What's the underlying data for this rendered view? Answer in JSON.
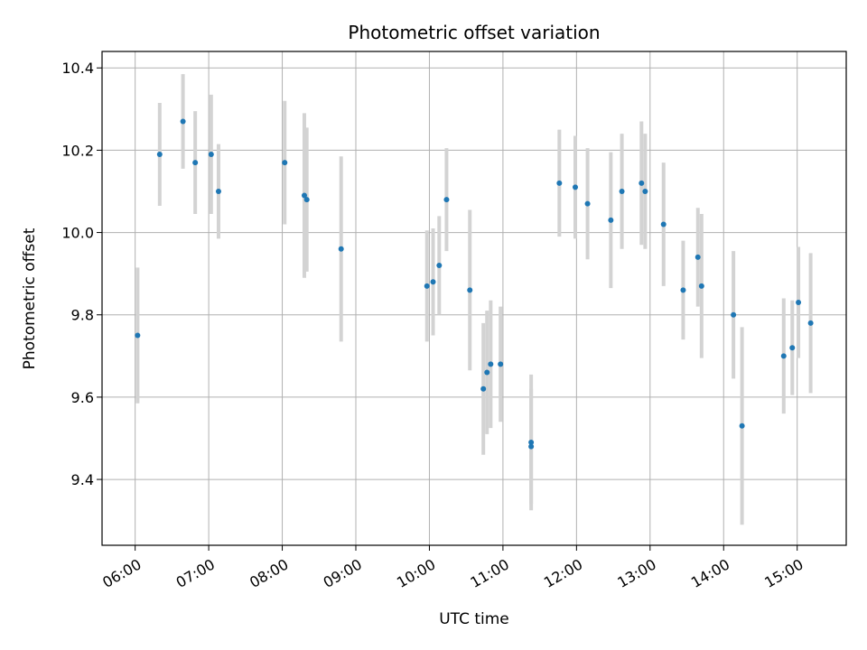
{
  "chart_data": {
    "type": "scatter",
    "title": "Photometric offset variation",
    "xlabel": "UTC time",
    "ylabel": "Photometric offset",
    "x_axis_type": "time",
    "x_ticks": [
      "06:00",
      "07:00",
      "08:00",
      "09:00",
      "10:00",
      "11:00",
      "12:00",
      "13:00",
      "14:00",
      "15:00"
    ],
    "xlim": [
      "05:33",
      "15:40"
    ],
    "y_ticks": [
      "9.4",
      "9.6",
      "9.8",
      "10.0",
      "10.2",
      "10.4"
    ],
    "ylim": [
      9.24,
      10.44
    ],
    "grid": true,
    "colors": {
      "points": "#1f77b4",
      "error_bars": "#d3d3d3",
      "grid": "#b0b0b0"
    },
    "points": [
      {
        "x": "06:02",
        "y": 9.75,
        "err": 0.165
      },
      {
        "x": "06:20",
        "y": 10.19,
        "err": 0.125
      },
      {
        "x": "06:39",
        "y": 10.27,
        "err": 0.115
      },
      {
        "x": "06:49",
        "y": 10.17,
        "err": 0.125
      },
      {
        "x": "07:02",
        "y": 10.19,
        "err": 0.145
      },
      {
        "x": "07:08",
        "y": 10.1,
        "err": 0.115
      },
      {
        "x": "08:02",
        "y": 10.17,
        "err": 0.15
      },
      {
        "x": "08:18",
        "y": 10.09,
        "err": 0.2
      },
      {
        "x": "08:20",
        "y": 10.08,
        "err": 0.175
      },
      {
        "x": "08:48",
        "y": 9.96,
        "err": 0.225
      },
      {
        "x": "09:58",
        "y": 9.87,
        "err": 0.135
      },
      {
        "x": "10:03",
        "y": 9.88,
        "err": 0.13
      },
      {
        "x": "10:08",
        "y": 9.92,
        "err": 0.12
      },
      {
        "x": "10:14",
        "y": 10.08,
        "err": 0.125
      },
      {
        "x": "10:33",
        "y": 9.86,
        "err": 0.195
      },
      {
        "x": "10:44",
        "y": 9.62,
        "err": 0.16
      },
      {
        "x": "10:47",
        "y": 9.66,
        "err": 0.15
      },
      {
        "x": "10:50",
        "y": 9.68,
        "err": 0.155
      },
      {
        "x": "10:58",
        "y": 9.68,
        "err": 0.14
      },
      {
        "x": "11:23",
        "y": 9.49,
        "err": 0.165
      },
      {
        "x": "11:23",
        "y": 9.48,
        "err": 0.14
      },
      {
        "x": "11:46",
        "y": 10.12,
        "err": 0.13
      },
      {
        "x": "11:59",
        "y": 10.11,
        "err": 0.125
      },
      {
        "x": "12:09",
        "y": 10.07,
        "err": 0.135
      },
      {
        "x": "12:28",
        "y": 10.03,
        "err": 0.165
      },
      {
        "x": "12:37",
        "y": 10.1,
        "err": 0.14
      },
      {
        "x": "12:53",
        "y": 10.12,
        "err": 0.15
      },
      {
        "x": "12:56",
        "y": 10.1,
        "err": 0.14
      },
      {
        "x": "13:11",
        "y": 10.02,
        "err": 0.15
      },
      {
        "x": "13:27",
        "y": 9.86,
        "err": 0.12
      },
      {
        "x": "13:39",
        "y": 9.94,
        "err": 0.12
      },
      {
        "x": "13:42",
        "y": 9.87,
        "err": 0.175
      },
      {
        "x": "14:08",
        "y": 9.8,
        "err": 0.155
      },
      {
        "x": "14:15",
        "y": 9.53,
        "err": 0.24
      },
      {
        "x": "14:49",
        "y": 9.7,
        "err": 0.14
      },
      {
        "x": "14:56",
        "y": 9.72,
        "err": 0.115
      },
      {
        "x": "15:01",
        "y": 9.83,
        "err": 0.135
      },
      {
        "x": "15:11",
        "y": 9.78,
        "err": 0.17
      }
    ]
  }
}
